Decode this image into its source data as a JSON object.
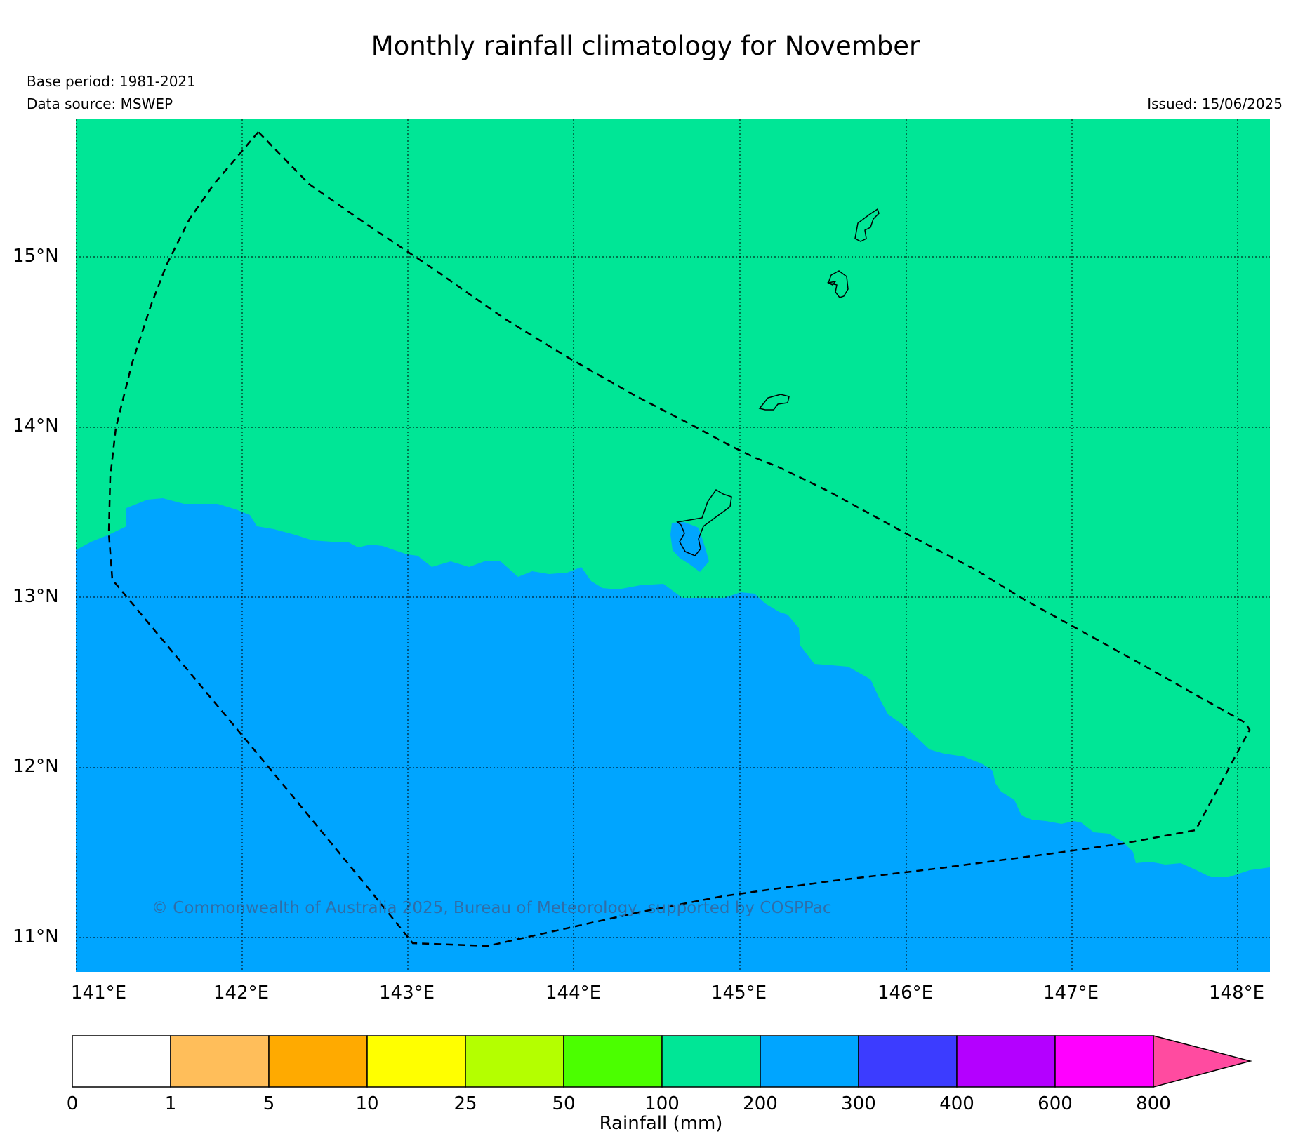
{
  "title": "Monthly rainfall climatology for November",
  "base_period": "Base period: 1981-2021",
  "data_source": "Data source: MSWEP",
  "issued": "Issued: 15/06/2025",
  "copyright": "© Commonwealth of Australia 2025, Bureau of Meteorology, supported by COSPPac",
  "map": {
    "lon_range": [
      141.0,
      148.2
    ],
    "lat_range": [
      10.8,
      15.82
    ],
    "lon_ticks": [
      "141°E",
      "142°E",
      "143°E",
      "144°E",
      "145°E",
      "146°E",
      "147°E",
      "148°E"
    ],
    "lat_ticks": [
      "15°N",
      "14°N",
      "13°N",
      "12°N",
      "11°N"
    ],
    "regions": [
      {
        "range": "100-200 mm",
        "color": "#00e696"
      },
      {
        "range": "200-300 mm",
        "color": "#00a5ff"
      }
    ],
    "boundary_style": "dashed"
  },
  "colorbar": {
    "label": "Rainfall (mm)",
    "tick_labels": [
      "0",
      "1",
      "5",
      "10",
      "25",
      "50",
      "100",
      "200",
      "300",
      "400",
      "600",
      "800"
    ],
    "colors": [
      "#ffffff",
      "#ffbe5a",
      "#ffaa00",
      "#ffff00",
      "#b4ff00",
      "#4bff00",
      "#00e696",
      "#00a5ff",
      "#3c3cff",
      "#b400ff",
      "#ff00ff"
    ],
    "extend_color": "#ff4ba0"
  }
}
